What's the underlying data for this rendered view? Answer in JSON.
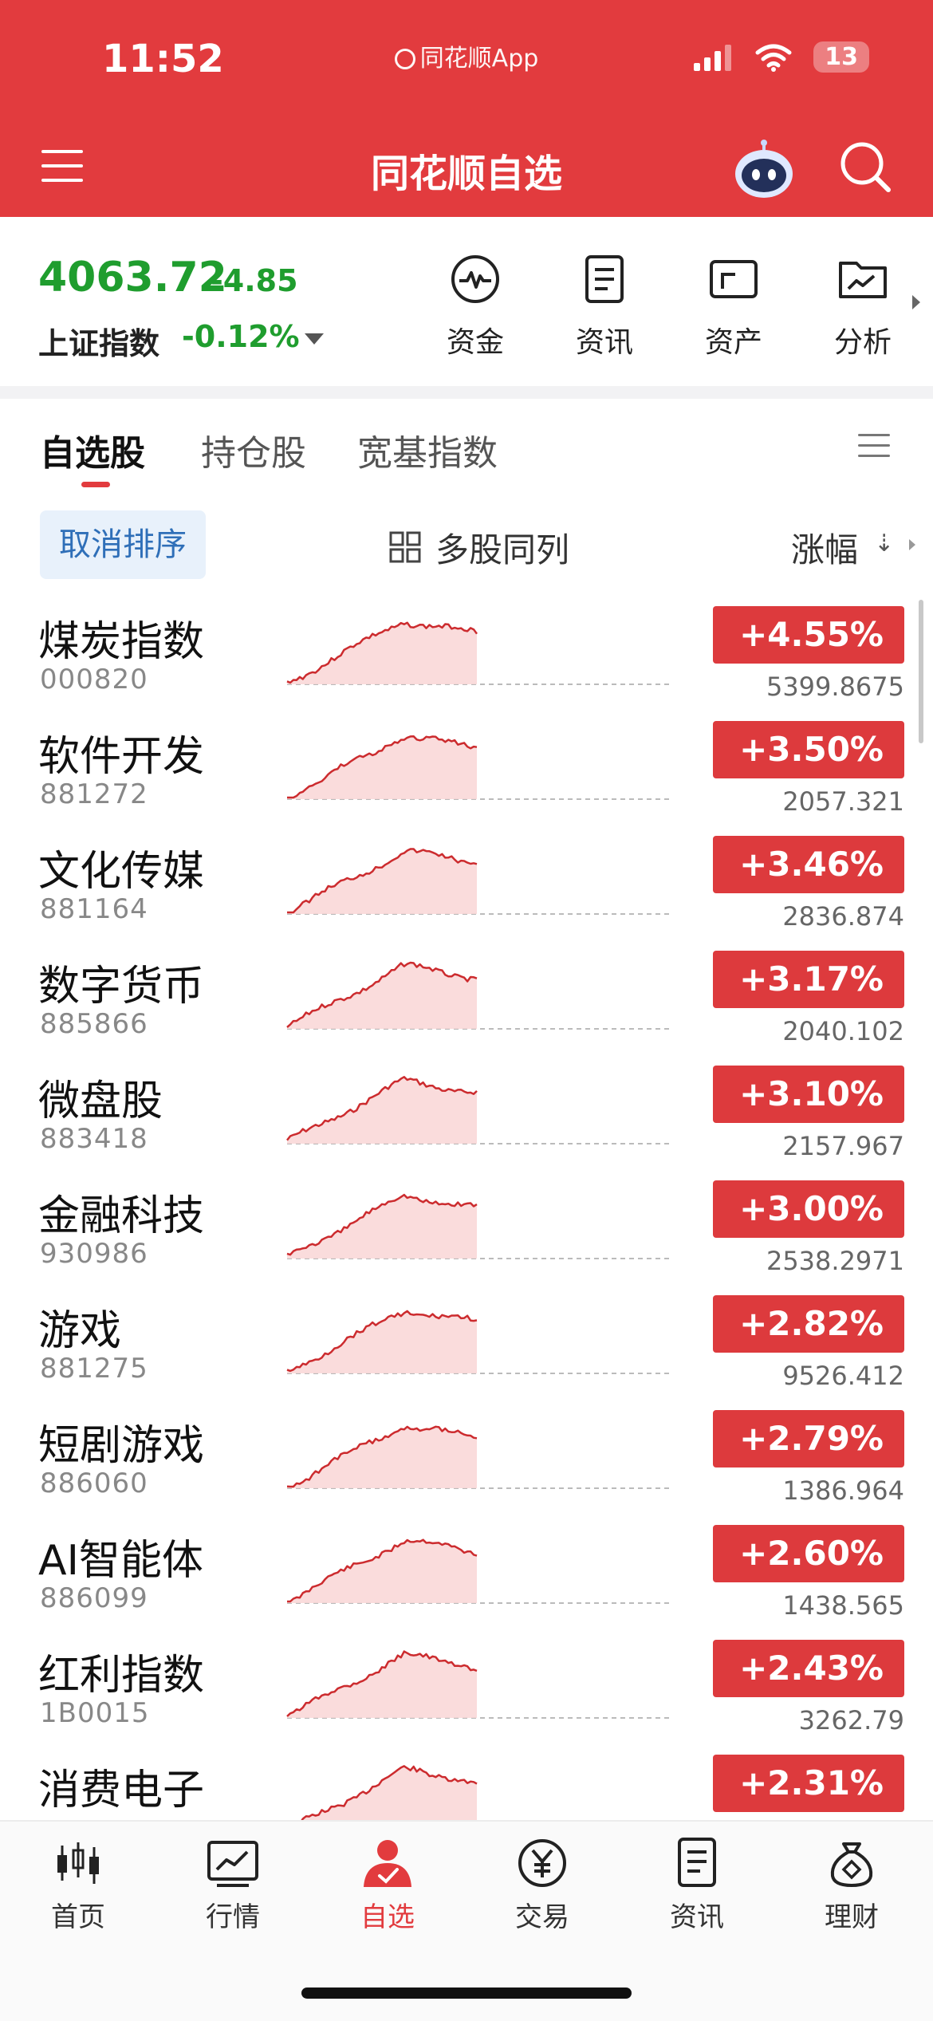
{
  "status_bar": {
    "time": "11:52",
    "app_name": "同花顺App",
    "battery": "13"
  },
  "nav": {
    "title": "同花顺自选"
  },
  "index": {
    "price": "4063.72",
    "change": "-4.85",
    "name": "上证指数",
    "pct": "-0.12%"
  },
  "quick_actions": [
    {
      "label": "资金",
      "icon": "pulse-icon"
    },
    {
      "label": "资讯",
      "icon": "document-icon"
    },
    {
      "label": "资产",
      "icon": "wallet-icon"
    },
    {
      "label": "分析",
      "icon": "folder-chart-icon"
    }
  ],
  "tabs": [
    {
      "label": "自选股",
      "active": true
    },
    {
      "label": "持仓股",
      "active": false
    },
    {
      "label": "宽基指数",
      "active": false
    }
  ],
  "sort_bar": {
    "cancel_sort": "取消排序",
    "multi_column": "多股同列",
    "sort_field": "涨幅",
    "sort_arrow": "⇣"
  },
  "stocks": [
    {
      "name": "煤炭指数",
      "code": "000820",
      "pct": "+4.55%",
      "price": "5399.8675"
    },
    {
      "name": "软件开发",
      "code": "881272",
      "pct": "+3.50%",
      "price": "2057.321"
    },
    {
      "name": "文化传媒",
      "code": "881164",
      "pct": "+3.46%",
      "price": "2836.874"
    },
    {
      "name": "数字货币",
      "code": "885866",
      "pct": "+3.17%",
      "price": "2040.102"
    },
    {
      "name": "微盘股",
      "code": "883418",
      "pct": "+3.10%",
      "price": "2157.967"
    },
    {
      "name": "金融科技",
      "code": "930986",
      "pct": "+3.00%",
      "price": "2538.2971"
    },
    {
      "name": "游戏",
      "code": "881275",
      "pct": "+2.82%",
      "price": "9526.412"
    },
    {
      "name": "短剧游戏",
      "code": "886060",
      "pct": "+2.79%",
      "price": "1386.964"
    },
    {
      "name": "AI智能体",
      "code": "886099",
      "pct": "+2.60%",
      "price": "1438.565"
    },
    {
      "name": "红利指数",
      "code": "1B0015",
      "pct": "+2.43%",
      "price": "3262.79"
    },
    {
      "name": "消费电子",
      "code": "",
      "pct": "+2.31%",
      "price": ""
    }
  ],
  "bottom_nav": [
    {
      "label": "首页",
      "icon": "candlestick-icon",
      "active": false
    },
    {
      "label": "行情",
      "icon": "market-chart-icon",
      "active": false
    },
    {
      "label": "自选",
      "icon": "watchlist-user-icon",
      "active": true
    },
    {
      "label": "交易",
      "icon": "yen-coin-icon",
      "active": false
    },
    {
      "label": "资讯",
      "icon": "news-icon",
      "active": false
    },
    {
      "label": "理财",
      "icon": "money-bag-icon",
      "active": false
    }
  ],
  "colors": {
    "brand_red": "#e23b3e",
    "down_green": "#1f9d2e",
    "link_blue": "#2f6fb8"
  }
}
